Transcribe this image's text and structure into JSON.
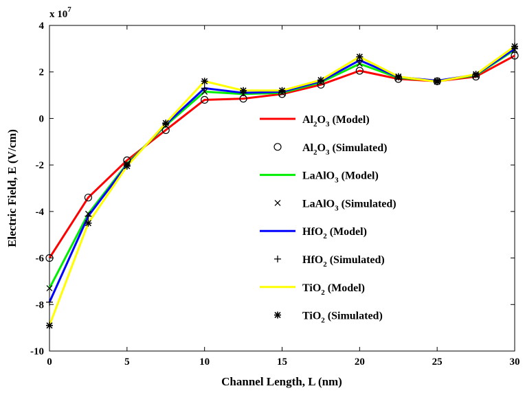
{
  "chart_data": {
    "type": "line",
    "title": "",
    "xlabel": "Channel Length, L (nm)",
    "ylabel": "Electric Field, E (V/cm)",
    "y_multiplier_label": "x 10",
    "y_multiplier_exponent": "7",
    "xlim": [
      0,
      30
    ],
    "ylim": [
      -10,
      4
    ],
    "xticks": [
      0,
      5,
      10,
      15,
      20,
      25,
      30
    ],
    "yticks": [
      -10,
      -8,
      -6,
      -4,
      -2,
      0,
      2,
      4
    ],
    "grid": false,
    "legend_position": "center-right",
    "x": [
      0,
      2.5,
      5,
      7.5,
      10,
      12.5,
      15,
      17.5,
      20,
      22.5,
      25,
      27.5,
      30
    ],
    "series": [
      {
        "name": "Al2O3",
        "color": "#ff0000",
        "marker": "open-circle",
        "legend_model": {
          "base": "Al",
          "sub1": "2",
          "mid": "O",
          "sub2": "3",
          "suffix": " (Model)"
        },
        "legend_sim": {
          "base": "Al",
          "sub1": "2",
          "mid": "O",
          "sub2": "3",
          "suffix": " (Simulated)"
        },
        "model": [
          -6.0,
          -3.4,
          -1.8,
          -0.5,
          0.8,
          0.85,
          1.05,
          1.45,
          2.05,
          1.7,
          1.6,
          1.8,
          2.7
        ],
        "simulated": [
          -6.0,
          -3.4,
          -1.8,
          -0.5,
          0.8,
          0.85,
          1.05,
          1.45,
          2.05,
          1.7,
          1.6,
          1.8,
          2.7
        ]
      },
      {
        "name": "LaAlO3",
        "color": "#00ee00",
        "marker": "x",
        "legend_model": {
          "base": "LaAlO",
          "sub1": "3",
          "mid": "",
          "sub2": "",
          "suffix": " (Model)"
        },
        "legend_sim": {
          "base": "LaAlO",
          "sub1": "3",
          "mid": "",
          "sub2": "",
          "suffix": " (Simulated)"
        },
        "model": [
          -7.3,
          -4.1,
          -1.95,
          -0.3,
          1.15,
          1.05,
          1.1,
          1.55,
          2.35,
          1.75,
          1.62,
          1.85,
          2.95
        ],
        "simulated": [
          -7.3,
          -4.1,
          -1.95,
          -0.3,
          1.15,
          1.05,
          1.1,
          1.55,
          2.35,
          1.75,
          1.62,
          1.85,
          2.95
        ]
      },
      {
        "name": "HfO2",
        "color": "#0000ff",
        "marker": "plus",
        "legend_model": {
          "base": "HfO",
          "sub1": "2",
          "mid": "",
          "sub2": "",
          "suffix": " (Model)"
        },
        "legend_sim": {
          "base": "HfO",
          "sub1": "2",
          "mid": "",
          "sub2": "",
          "suffix": " (Simulated)"
        },
        "model": [
          -7.9,
          -4.2,
          -2.0,
          -0.25,
          1.3,
          1.1,
          1.15,
          1.6,
          2.5,
          1.78,
          1.62,
          1.88,
          3.0
        ],
        "simulated": [
          -7.9,
          -4.2,
          -2.0,
          -0.25,
          1.3,
          1.1,
          1.15,
          1.6,
          2.5,
          1.78,
          1.62,
          1.88,
          3.0
        ]
      },
      {
        "name": "TiO2",
        "color": "#ffff00",
        "marker": "asterisk",
        "legend_model": {
          "base": "TiO",
          "sub1": "2",
          "mid": "",
          "sub2": "",
          "suffix": " (Model)"
        },
        "legend_sim": {
          "base": "TiO",
          "sub1": "2",
          "mid": "",
          "sub2": "",
          "suffix": " (Simulated)"
        },
        "model": [
          -8.9,
          -4.5,
          -2.05,
          -0.2,
          1.6,
          1.2,
          1.2,
          1.65,
          2.65,
          1.8,
          1.58,
          1.9,
          3.1
        ],
        "simulated": [
          -8.9,
          -4.5,
          -2.05,
          -0.2,
          1.6,
          1.2,
          1.2,
          1.65,
          2.65,
          1.8,
          1.58,
          1.9,
          3.1
        ]
      }
    ]
  }
}
